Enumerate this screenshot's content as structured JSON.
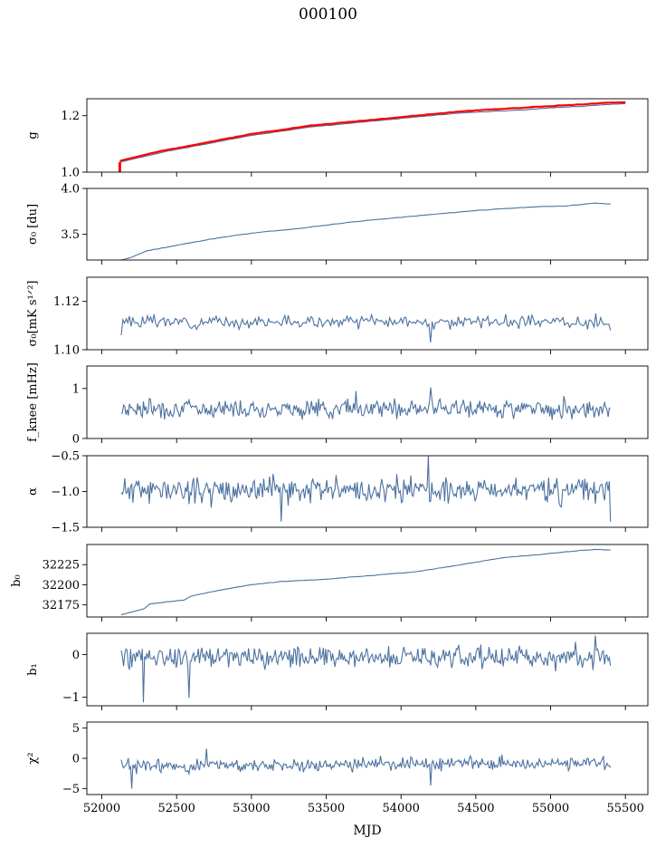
{
  "title": "000100",
  "colors": {
    "series": "#4c72a0",
    "model": "#ff0000",
    "axis": "#000000"
  },
  "chart_data": {
    "type": "line",
    "xlabel": "MJD",
    "xlim": [
      51900,
      55650
    ],
    "xticks": [
      52000,
      52500,
      53000,
      53500,
      54000,
      54500,
      55000,
      55500
    ],
    "xtick_labels": [
      "52000",
      "52500",
      "53000",
      "53500",
      "54000",
      "54500",
      "55000",
      "55500"
    ],
    "grid": false,
    "panels": [
      {
        "id": "g",
        "ylabel": "g",
        "ylim": [
          1.0,
          1.26
        ],
        "yticks": [
          1.0,
          1.2
        ],
        "ytick_labels": [
          "1.0",
          "1.2"
        ],
        "style": "smooth",
        "series": [
          {
            "color": "#4c72a0",
            "x": [
              52120,
              52200,
              52400,
              52600,
              52800,
              53000,
              53200,
              53400,
              53600,
              53800,
              54000,
              54200,
              54400,
              54600,
              54800,
              55000,
              55200,
              55400,
              55500
            ],
            "values": [
              1.035,
              1.045,
              1.07,
              1.09,
              1.11,
              1.13,
              1.145,
              1.16,
              1.17,
              1.18,
              1.19,
              1.2,
              1.21,
              1.215,
              1.22,
              1.228,
              1.233,
              1.24,
              1.243
            ]
          },
          {
            "color": "#ff0000",
            "x": [
              52120,
              52200,
              52400,
              52600,
              52800,
              53000,
              53200,
              53400,
              53600,
              53800,
              54000,
              54200,
              54400,
              54600,
              54800,
              55000,
              55200,
              55400,
              55500
            ],
            "values": [
              1.04,
              1.05,
              1.075,
              1.095,
              1.115,
              1.135,
              1.15,
              1.165,
              1.175,
              1.185,
              1.195,
              1.205,
              1.215,
              1.222,
              1.228,
              1.234,
              1.24,
              1.246,
              1.248
            ]
          }
        ]
      },
      {
        "id": "sigma0-du",
        "ylabel": "σ₀ [du]",
        "ylim": [
          3.22,
          4.0
        ],
        "yticks": [
          3.5,
          4.0
        ],
        "ytick_labels": [
          "3.5",
          "4.0"
        ],
        "style": "smooth",
        "series": [
          {
            "color": "#4c72a0",
            "x": [
              52130,
              52200,
              52300,
              52500,
              52700,
              52900,
              53100,
              53300,
              53500,
              53700,
              53900,
              54100,
              54300,
              54500,
              54700,
              54900,
              55100,
              55300,
              55400
            ],
            "values": [
              3.22,
              3.25,
              3.32,
              3.38,
              3.44,
              3.49,
              3.53,
              3.56,
              3.6,
              3.64,
              3.67,
              3.7,
              3.73,
              3.76,
              3.78,
              3.8,
              3.81,
              3.84,
              3.83
            ]
          }
        ]
      },
      {
        "id": "sigma0-mk",
        "ylabel": "σ₀[mK s¹ᐟ²]",
        "ylim": [
          1.1,
          1.13
        ],
        "yticks": [
          1.1,
          1.12
        ],
        "ytick_labels": [
          "1.10",
          "1.12"
        ],
        "style": "noise",
        "series": [
          {
            "color": "#4c72a0",
            "x_start": 52130,
            "x_end": 55400,
            "base": 1.1115,
            "amp": 0.0012,
            "points": 300,
            "seed": 3,
            "values_at": [
              [
                52130,
                1.106
              ],
              [
                52300,
                1.114
              ],
              [
                54200,
                1.103
              ],
              [
                55300,
                1.115
              ],
              [
                55400,
                1.108
              ]
            ]
          }
        ]
      },
      {
        "id": "fknee",
        "ylabel": "f_knee [mHz]",
        "ylim": [
          0,
          1.45
        ],
        "yticks": [
          0,
          1
        ],
        "ytick_labels": [
          "0",
          "1"
        ],
        "style": "noise",
        "series": [
          {
            "color": "#4c72a0",
            "x_start": 52130,
            "x_end": 55400,
            "base": 0.6,
            "amp": 0.09,
            "points": 420,
            "seed": 7,
            "values_at": [
              [
                54200,
                1.02
              ],
              [
                53700,
                0.95
              ]
            ]
          }
        ]
      },
      {
        "id": "alpha",
        "ylabel": "α",
        "ylim": [
          -1.5,
          -0.5
        ],
        "yticks": [
          -1.5,
          -1.0,
          -0.5
        ],
        "ytick_labels": [
          "−1.5",
          "−1.0",
          "−0.5"
        ],
        "style": "noise",
        "series": [
          {
            "color": "#4c72a0",
            "x_start": 52130,
            "x_end": 55400,
            "base": -0.98,
            "amp": 0.09,
            "points": 420,
            "seed": 11,
            "values_at": [
              [
                54180,
                -0.5
              ],
              [
                53200,
                -1.42
              ],
              [
                55400,
                -1.42
              ]
            ]
          }
        ]
      },
      {
        "id": "b0",
        "ylabel": "b₀",
        "ylim": [
          32160,
          32250
        ],
        "yticks": [
          32175,
          32200,
          32225
        ],
        "ytick_labels": [
          "32175",
          "32200",
          "32225"
        ],
        "style": "smooth",
        "series": [
          {
            "color": "#4c72a0",
            "x": [
              52130,
              52200,
              52280,
              52320,
              52450,
              52550,
              52600,
              52700,
              52900,
              53000,
              53200,
              53500,
              53700,
              53900,
              54100,
              54300,
              54500,
              54700,
              54900,
              55100,
              55300,
              55400
            ],
            "values": [
              32163,
              32166,
              32170,
              32176,
              32179,
              32181,
              32186,
              32190,
              32197,
              32200,
              32204,
              32207,
              32210,
              32213,
              32216,
              32222,
              32228,
              32234,
              32237,
              32241,
              32244,
              32243
            ]
          }
        ]
      },
      {
        "id": "b1",
        "ylabel": "b₁",
        "ylim": [
          -1.2,
          0.5
        ],
        "yticks": [
          -1,
          0
        ],
        "ytick_labels": [
          "−1",
          "0"
        ],
        "style": "noise",
        "series": [
          {
            "color": "#4c72a0",
            "x_start": 52130,
            "x_end": 55400,
            "base": -0.05,
            "amp": 0.13,
            "points": 420,
            "seed": 19,
            "values_at": [
              [
                52280,
                -1.12
              ],
              [
                52580,
                -1.02
              ],
              [
                55300,
                0.45
              ]
            ]
          }
        ]
      },
      {
        "id": "chi2",
        "ylabel": "χ²",
        "ylim": [
          -6,
          6
        ],
        "yticks": [
          -5,
          0,
          5
        ],
        "ytick_labels": [
          "−5",
          "0",
          "5"
        ],
        "style": "noise",
        "series": [
          {
            "color": "#4c72a0",
            "x_start": 52130,
            "x_end": 55400,
            "base": -1.3,
            "amp": 0.55,
            "points": 420,
            "seed": 23,
            "trend_end": -0.7,
            "values_at": [
              [
                52200,
                -5.0
              ],
              [
                52700,
                1.6
              ],
              [
                54200,
                -4.5
              ]
            ]
          }
        ]
      }
    ]
  }
}
